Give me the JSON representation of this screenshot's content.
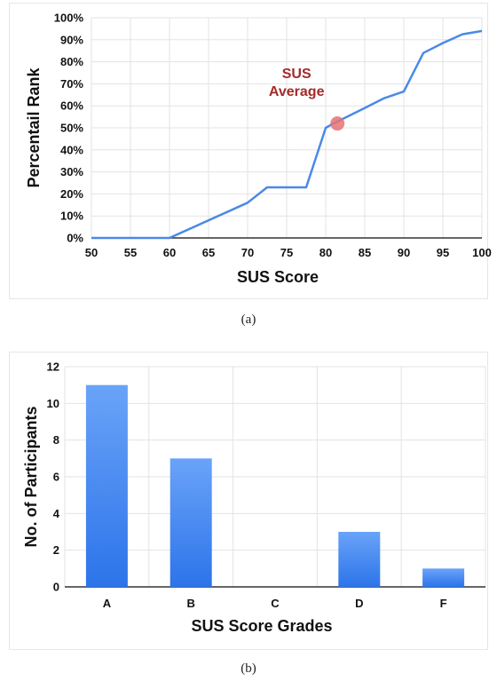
{
  "chart_data": [
    {
      "type": "line",
      "xlabel": "SUS Score",
      "ylabel": "Percentail Rank",
      "xlim": [
        50,
        100
      ],
      "ylim": [
        0,
        100
      ],
      "xticks": [
        "50",
        "55",
        "60",
        "65",
        "70",
        "75",
        "80",
        "85",
        "90",
        "95",
        "100"
      ],
      "yticks": [
        "0%",
        "10%",
        "20%",
        "30%",
        "40%",
        "50%",
        "60%",
        "70%",
        "80%",
        "90%",
        "100%"
      ],
      "grid": true,
      "line_color": "#4a89e8",
      "series": [
        {
          "x": [
            50,
            60,
            70,
            72.5,
            77.5,
            80,
            81,
            85,
            87.5,
            90,
            92.5,
            95,
            97.5,
            100
          ],
          "y": [
            0,
            0,
            16,
            23,
            23,
            50,
            52,
            59,
            63.5,
            66.5,
            84,
            88.5,
            92.5,
            94
          ]
        }
      ],
      "annotation": {
        "line1": "SUS",
        "line2": "Average",
        "x": 81.5,
        "y": 52,
        "color": "#a52a2a",
        "marker_color": "#e57373"
      }
    },
    {
      "type": "bar",
      "xlabel": "SUS Score Grades",
      "ylabel": "No. of Participants",
      "categories": [
        "A",
        "B",
        "C",
        "D",
        "F"
      ],
      "values": [
        11,
        7,
        0,
        3,
        1
      ],
      "ylim": [
        0,
        12
      ],
      "yticks": [
        "0",
        "2",
        "4",
        "6",
        "8",
        "10",
        "12"
      ],
      "grid": true,
      "bar_color": "#3b82f6"
    }
  ],
  "captions": {
    "a": "(a)",
    "b": "(b)"
  }
}
